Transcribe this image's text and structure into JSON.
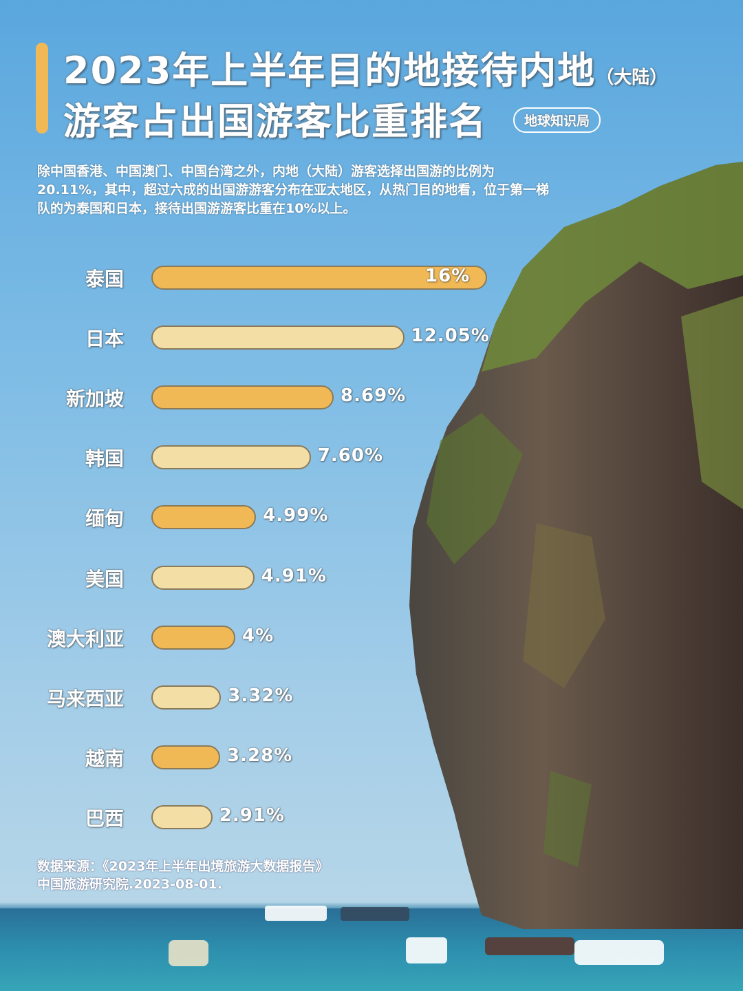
{
  "title": {
    "line1": "2023年上半年目的地接待内地",
    "line1_suffix": "（大陆）",
    "line2": "游客占出国游客比重排名",
    "badge": "地球知识局"
  },
  "description": "除中国香港、中国澳门、中国台湾之外，内地（大陆）游客选择出国游的比例为20.11%，其中，超过六成的出国游游客分布在亚太地区，从热门目的地看，位于第一梯队的为泰国和日本，接待出国游游客比重在10%以上。",
  "source": {
    "line1": "数据来源：《2023年上半年出境旅游大数据报告》",
    "line2": "中国旅游研究院.2023-08-01."
  },
  "colors": {
    "bar_dark": "#f0b955",
    "bar_light": "#f3dfa5",
    "accent": "#f0b955"
  },
  "chart_data": {
    "type": "bar",
    "orientation": "horizontal",
    "categories": [
      "泰国",
      "日本",
      "新加坡",
      "韩国",
      "缅甸",
      "美国",
      "澳大利亚",
      "马来西亚",
      "越南",
      "巴西"
    ],
    "values": [
      16,
      12.05,
      8.69,
      7.6,
      4.99,
      4.91,
      4,
      3.32,
      3.28,
      2.91
    ],
    "labels": [
      "16%",
      "12.05%",
      "8.69%",
      "7.60%",
      "4.99%",
      "4.91%",
      "4%",
      "3.32%",
      "3.28%",
      "2.91%"
    ],
    "unit": "%",
    "grid": false
  }
}
